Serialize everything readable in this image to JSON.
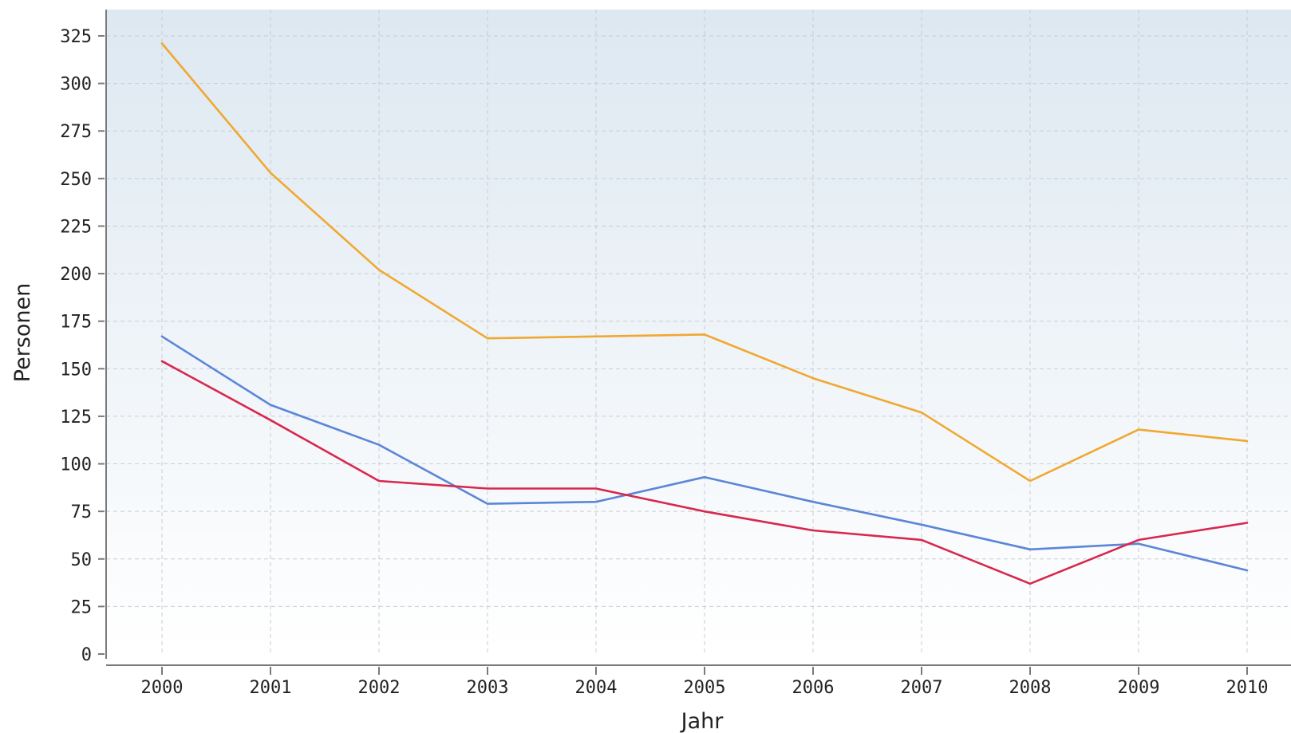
{
  "chart_data": {
    "type": "line",
    "title": "",
    "xlabel": "Jahr",
    "ylabel": "Personen",
    "x": [
      "2000",
      "2001",
      "2002",
      "2003",
      "2004",
      "2005",
      "2006",
      "2007",
      "2008",
      "2009",
      "2010"
    ],
    "yticks": [
      0,
      25,
      50,
      75,
      100,
      125,
      150,
      175,
      200,
      225,
      250,
      275,
      300,
      325
    ],
    "ylim": [
      0,
      337
    ],
    "grid": true,
    "legend": "none",
    "background_gradient": [
      "#dde8f1",
      "#ffffff"
    ],
    "series": [
      {
        "color": "#f0a830",
        "values": [
          321,
          253,
          202,
          166,
          167,
          168,
          145,
          127,
          91,
          118,
          112
        ]
      },
      {
        "color": "#5b86d8",
        "values": [
          167,
          131,
          110,
          79,
          80,
          93,
          80,
          68,
          55,
          58,
          44
        ]
      },
      {
        "color": "#d8284f",
        "values": [
          154,
          123,
          91,
          87,
          87,
          75,
          65,
          60,
          37,
          60,
          69
        ]
      }
    ]
  }
}
